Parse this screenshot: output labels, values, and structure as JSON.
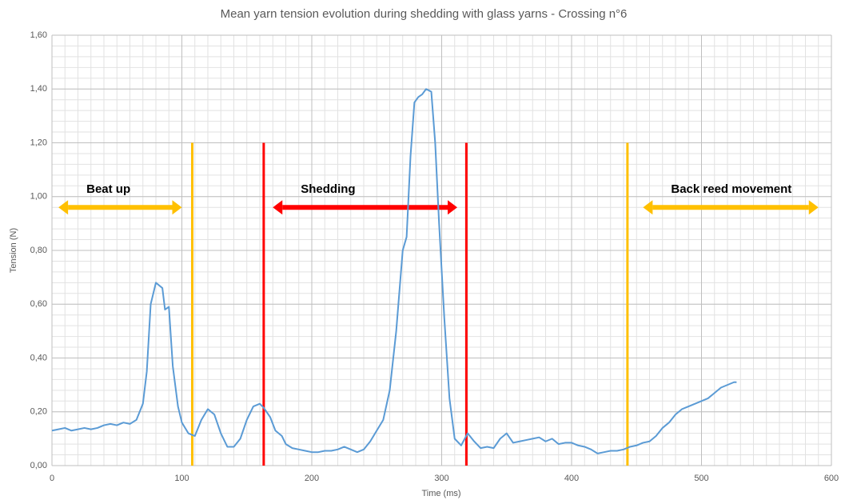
{
  "chart_data": {
    "type": "line",
    "title": "Mean yarn tension evolution during shedding with glass yarns - Crossing n°6",
    "x_label": "Time (ms)",
    "y_label": "Tension (N)",
    "xlim": [
      0,
      600
    ],
    "xticks": [
      0,
      100,
      200,
      300,
      400,
      500,
      600
    ],
    "ylim": [
      0,
      1.6
    ],
    "yticks": [
      {
        "value": 0,
        "label": "0,00"
      },
      {
        "value": 0.2,
        "label": "0,20"
      },
      {
        "value": 0.4,
        "label": "0,40"
      },
      {
        "value": 0.6,
        "label": "0,60"
      },
      {
        "value": 0.8,
        "label": "0,80"
      },
      {
        "value": 1.0,
        "label": "1,00"
      },
      {
        "value": 1.2,
        "label": "1,20"
      },
      {
        "value": 1.4,
        "label": "1,40"
      },
      {
        "value": 1.6,
        "label": "1,60"
      }
    ],
    "grid": true,
    "minor_grid": {
      "x": 10,
      "y": 0.04
    },
    "series": [
      {
        "name": "Tension",
        "color": "#5b9bd5",
        "x": [
          0,
          5,
          10,
          15,
          20,
          25,
          30,
          35,
          40,
          45,
          50,
          55,
          60,
          65,
          70,
          73,
          76,
          80,
          85,
          87,
          90,
          93,
          97,
          100,
          105,
          110,
          115,
          120,
          125,
          130,
          135,
          140,
          145,
          150,
          155,
          160,
          163,
          168,
          172,
          177,
          180,
          185,
          190,
          195,
          200,
          205,
          210,
          215,
          220,
          225,
          230,
          235,
          240,
          245,
          250,
          255,
          260,
          265,
          270,
          273,
          276,
          279,
          282,
          285,
          288,
          292,
          295,
          298,
          302,
          306,
          310,
          315,
          320,
          325,
          330,
          335,
          340,
          345,
          350,
          355,
          360,
          365,
          370,
          375,
          380,
          385,
          390,
          395,
          400,
          405,
          410,
          415,
          420,
          425,
          430,
          435,
          440,
          445,
          450,
          455,
          460,
          465,
          470,
          475,
          480,
          485,
          490,
          495,
          500,
          505,
          510,
          515,
          520,
          525,
          527
        ],
        "values": [
          0.13,
          0.135,
          0.14,
          0.13,
          0.135,
          0.14,
          0.135,
          0.14,
          0.15,
          0.155,
          0.15,
          0.16,
          0.155,
          0.17,
          0.23,
          0.35,
          0.6,
          0.68,
          0.66,
          0.58,
          0.59,
          0.37,
          0.22,
          0.16,
          0.12,
          0.11,
          0.17,
          0.21,
          0.19,
          0.12,
          0.07,
          0.07,
          0.1,
          0.17,
          0.22,
          0.23,
          0.215,
          0.18,
          0.13,
          0.11,
          0.08,
          0.065,
          0.06,
          0.055,
          0.05,
          0.05,
          0.055,
          0.055,
          0.06,
          0.07,
          0.06,
          0.05,
          0.06,
          0.09,
          0.13,
          0.17,
          0.28,
          0.5,
          0.8,
          0.85,
          1.15,
          1.35,
          1.37,
          1.38,
          1.4,
          1.39,
          1.2,
          0.9,
          0.55,
          0.25,
          0.1,
          0.075,
          0.12,
          0.09,
          0.065,
          0.07,
          0.065,
          0.1,
          0.12,
          0.085,
          0.09,
          0.095,
          0.1,
          0.105,
          0.09,
          0.1,
          0.08,
          0.085,
          0.085,
          0.075,
          0.07,
          0.06,
          0.045,
          0.05,
          0.055,
          0.055,
          0.06,
          0.07,
          0.075,
          0.085,
          0.09,
          0.11,
          0.14,
          0.16,
          0.19,
          0.21,
          0.22,
          0.23,
          0.24,
          0.25,
          0.27,
          0.29,
          0.3,
          0.31,
          0.31
        ]
      }
    ],
    "vlines": [
      {
        "x": 108,
        "y_top": 1.2,
        "color": "#ffc000"
      },
      {
        "x": 163,
        "y_top": 1.2,
        "color": "#ff0000"
      },
      {
        "x": 319,
        "y_top": 1.2,
        "color": "#ff0000"
      },
      {
        "x": 443,
        "y_top": 1.2,
        "color": "#ffc000"
      }
    ],
    "arrows": [
      {
        "label": "Beat up",
        "x1": 5,
        "x2": 100,
        "y": 0.96,
        "color": "#ffc000"
      },
      {
        "label": "Shedding",
        "x1": 170,
        "x2": 312,
        "y": 0.96,
        "color": "#ff0000"
      },
      {
        "label": "Back reed movement",
        "x1": 455,
        "x2": 590,
        "y": 0.96,
        "color": "#ffc000"
      }
    ]
  }
}
